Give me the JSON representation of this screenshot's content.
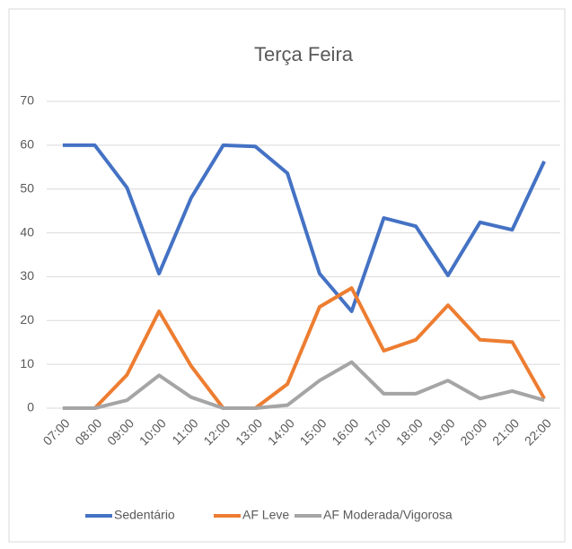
{
  "chart_data": {
    "type": "line",
    "title": "Terça Feira",
    "categories": [
      "07:00",
      "08:00",
      "09:00",
      "10:00",
      "11:00",
      "12:00",
      "13:00",
      "14:00",
      "15:00",
      "16:00",
      "17:00",
      "18:00",
      "19:00",
      "20:00",
      "21:00",
      "22:00"
    ],
    "series": [
      {
        "name": "Sedentário",
        "color": "#4472c4",
        "values": [
          60,
          60,
          50.3,
          30.7,
          48,
          60,
          59.7,
          53.6,
          30.7,
          22.1,
          43.4,
          41.5,
          30.3,
          42.4,
          40.7,
          56.3
        ]
      },
      {
        "name": "AF Leve",
        "color": "#ed7d31",
        "values": [
          0,
          0,
          7.6,
          22.1,
          9.6,
          0,
          0,
          5.5,
          23.1,
          27.4,
          13.1,
          15.6,
          23.5,
          15.6,
          15.1,
          2.2
        ]
      },
      {
        "name": "AF Moderada/Vigorosa",
        "color": "#a5a5a5",
        "values": [
          0,
          0,
          1.8,
          7.5,
          2.5,
          0,
          0,
          0.7,
          6.3,
          10.5,
          3.3,
          3.3,
          6.3,
          2.2,
          3.9,
          1.8
        ]
      }
    ],
    "ylim": [
      0,
      70
    ],
    "yticks": [
      0,
      10,
      20,
      30,
      40,
      50,
      60,
      70
    ],
    "grid": true,
    "legend": "bottom"
  }
}
